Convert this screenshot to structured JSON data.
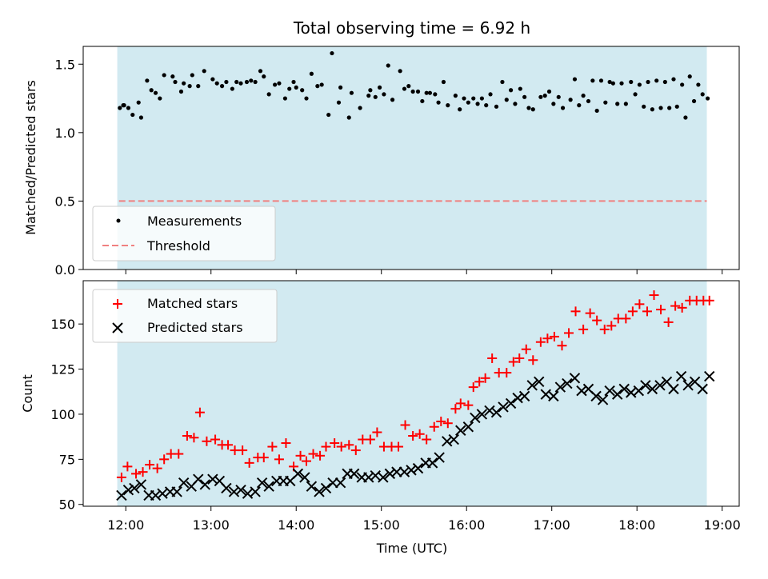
{
  "chart_data": {
    "title": "Total observing time = 6.92 h",
    "x_axis": {
      "label": "Time (UTC)",
      "ticks": [
        "12:00",
        "13:00",
        "14:00",
        "15:00",
        "16:00",
        "17:00",
        "18:00",
        "19:00"
      ],
      "range_hours": [
        11.5,
        19.2
      ]
    },
    "shaded_region": {
      "start_hour": 11.9,
      "end_hour": 18.82,
      "color": "#add8e6"
    },
    "panels": [
      {
        "type": "scatter",
        "ylabel": "Matched/Predicted stars",
        "ylim": [
          0,
          1.63
        ],
        "yticks": [
          "0.0",
          "0.5",
          "1.0",
          "1.5"
        ],
        "legend": {
          "placement": "lower-left",
          "entries": [
            "Measurements",
            "Threshold"
          ]
        },
        "series": [
          {
            "name": "Measurements",
            "marker": "dot",
            "color": "#000000",
            "x": [
              11.93,
              11.98,
              12.08,
              12.18,
              12.3,
              12.4,
              12.58,
              12.68,
              12.78,
              12.92,
              13.02,
              13.13,
              13.25,
              13.35,
              13.47,
              13.58,
              13.68,
              13.8,
              13.92,
              14.0,
              14.12,
              14.25,
              14.38,
              14.5,
              14.62,
              14.75,
              14.87,
              14.98,
              15.08,
              15.22,
              15.32,
              15.43,
              15.53,
              15.63,
              15.73,
              15.87,
              15.97,
              16.08,
              16.18,
              16.28,
              16.42,
              16.52,
              16.63,
              16.73,
              16.87,
              16.97,
              17.08,
              17.22,
              17.32,
              17.43,
              17.53,
              17.63,
              17.77,
              17.87,
              17.98,
              18.08,
              18.18,
              18.28,
              18.38,
              18.47,
              18.57,
              18.67,
              18.77,
              18.83,
              11.97,
              12.03,
              12.15,
              12.25,
              12.35,
              12.45,
              12.55,
              12.65,
              12.75,
              12.85,
              13.07,
              13.18,
              13.3,
              13.42,
              13.52,
              13.62,
              13.75,
              13.87,
              13.97,
              14.07,
              14.18,
              14.3,
              14.42,
              14.52,
              14.65,
              14.85,
              14.93,
              15.03,
              15.13,
              15.27,
              15.37,
              15.48,
              15.57,
              15.67,
              15.78,
              15.92,
              16.02,
              16.13,
              16.23,
              16.35,
              16.47,
              16.57,
              16.68,
              16.78,
              16.92,
              17.02,
              17.13,
              17.27,
              17.37,
              17.48,
              17.58,
              17.68,
              17.72,
              17.82,
              17.93,
              18.03,
              18.13,
              18.23,
              18.33,
              18.43,
              18.53,
              18.62,
              18.72
            ],
            "y": [
              1.18,
              1.2,
              1.13,
              1.11,
              1.31,
              1.25,
              1.37,
              1.36,
              1.42,
              1.45,
              1.39,
              1.34,
              1.32,
              1.36,
              1.38,
              1.45,
              1.28,
              1.36,
              1.32,
              1.33,
              1.25,
              1.34,
              1.13,
              1.22,
              1.11,
              1.18,
              1.31,
              1.33,
              1.49,
              1.45,
              1.34,
              1.3,
              1.29,
              1.28,
              1.37,
              1.27,
              1.25,
              1.25,
              1.25,
              1.28,
              1.37,
              1.31,
              1.32,
              1.18,
              1.26,
              1.3,
              1.26,
              1.24,
              1.2,
              1.23,
              1.16,
              1.22,
              1.21,
              1.21,
              1.28,
              1.19,
              1.17,
              1.18,
              1.18,
              1.19,
              1.11,
              1.23,
              1.28,
              1.25,
              1.2,
              1.18,
              1.22,
              1.38,
              1.29,
              1.42,
              1.41,
              1.3,
              1.34,
              1.34,
              1.36,
              1.37,
              1.37,
              1.37,
              1.37,
              1.41,
              1.35,
              1.25,
              1.37,
              1.31,
              1.43,
              1.35,
              1.58,
              1.33,
              1.29,
              1.27,
              1.26,
              1.28,
              1.24,
              1.32,
              1.3,
              1.23,
              1.29,
              1.22,
              1.2,
              1.17,
              1.22,
              1.21,
              1.2,
              1.19,
              1.24,
              1.21,
              1.26,
              1.17,
              1.27,
              1.21,
              1.18,
              1.39,
              1.27,
              1.38,
              1.38,
              1.37,
              1.36,
              1.36,
              1.37,
              1.35,
              1.37,
              1.38,
              1.37,
              1.39,
              1.35,
              1.41,
              1.35
            ]
          },
          {
            "name": "Threshold",
            "type": "line",
            "style": "dashed",
            "color": "#f08080",
            "x": [
              11.92,
              18.82
            ],
            "y": [
              0.5,
              0.5
            ]
          }
        ]
      },
      {
        "type": "scatter",
        "ylabel": "Count",
        "ylim": [
          49,
          174
        ],
        "yticks": [
          "50",
          "75",
          "100",
          "125",
          "150"
        ],
        "legend": {
          "placement": "upper-left",
          "entries": [
            "Matched stars",
            "Predicted stars"
          ]
        },
        "series": [
          {
            "name": "Matched stars",
            "marker": "plus",
            "color": "#ff0000",
            "x": [
              11.95,
              12.02,
              12.12,
              12.2,
              12.28,
              12.37,
              12.45,
              12.53,
              12.62,
              12.72,
              12.8,
              12.87,
              12.95,
              13.05,
              13.13,
              13.2,
              13.28,
              13.37,
              13.45,
              13.55,
              13.62,
              13.72,
              13.8,
              13.88,
              13.97,
              14.05,
              14.12,
              14.2,
              14.28,
              14.35,
              14.45,
              14.53,
              14.62,
              14.7,
              14.78,
              14.87,
              14.95,
              15.03,
              15.12,
              15.2,
              15.28,
              15.37,
              15.45,
              15.53,
              15.62,
              15.7,
              15.78,
              15.87,
              15.93,
              16.02,
              16.08,
              16.15,
              16.22,
              16.3,
              16.38,
              16.47,
              16.55,
              16.62,
              16.7,
              16.78,
              16.87,
              16.95,
              17.03,
              17.12,
              17.2,
              17.28,
              17.37,
              17.45,
              17.53,
              17.62,
              17.7,
              17.78,
              17.87,
              17.95,
              18.03,
              18.12,
              18.2,
              18.28,
              18.37,
              18.45,
              18.53,
              18.62,
              18.7,
              18.78,
              18.85
            ],
            "y": [
              65,
              71,
              67,
              68,
              72,
              70,
              75,
              78,
              78,
              88,
              87,
              101,
              85,
              86,
              83,
              83,
              80,
              80,
              73,
              76,
              76,
              82,
              75,
              84,
              71,
              77,
              74,
              78,
              77,
              82,
              84,
              82,
              83,
              80,
              86,
              86,
              90,
              82,
              82,
              82,
              94,
              88,
              89,
              86,
              93,
              96,
              95,
              103,
              106,
              105,
              115,
              118,
              120,
              131,
              123,
              123,
              129,
              131,
              136,
              130,
              140,
              142,
              143,
              138,
              145,
              157,
              147,
              156,
              152,
              147,
              149,
              153,
              153,
              157,
              161,
              157,
              166,
              158,
              151,
              160,
              159,
              163,
              163,
              163,
              163
            ],
            "x_plot": []
          },
          {
            "name": "Predicted stars",
            "marker": "x",
            "color": "#000000",
            "x": [
              11.95,
              12.03,
              12.1,
              12.18,
              12.27,
              12.35,
              12.43,
              12.52,
              12.6,
              12.68,
              12.77,
              12.85,
              12.93,
              13.02,
              13.1,
              13.18,
              13.27,
              13.35,
              13.43,
              13.52,
              13.6,
              13.68,
              13.77,
              13.85,
              13.93,
              14.02,
              14.1,
              14.18,
              14.27,
              14.35,
              14.43,
              14.52,
              14.6,
              14.68,
              14.77,
              14.85,
              14.93,
              15.02,
              15.1,
              15.18,
              15.27,
              15.35,
              15.43,
              15.52,
              15.6,
              15.68,
              15.77,
              15.85,
              15.93,
              16.02,
              16.1,
              16.18,
              16.27,
              16.35,
              16.43,
              16.52,
              16.6,
              16.68,
              16.77,
              16.85,
              16.93,
              17.02,
              17.1,
              17.18,
              17.27,
              17.35,
              17.43,
              17.52,
              17.6,
              17.68,
              17.77,
              17.85,
              17.93,
              18.02,
              18.1,
              18.18,
              18.27,
              18.35,
              18.43,
              18.52,
              18.6,
              18.68,
              18.77,
              18.85
            ],
            "y": [
              55,
              58,
              59,
              61,
              55,
              55,
              56,
              57,
              57,
              62,
              60,
              64,
              61,
              64,
              63,
              59,
              57,
              58,
              56,
              57,
              62,
              60,
              63,
              63,
              63,
              67,
              65,
              60,
              57,
              59,
              62,
              62,
              67,
              67,
              65,
              65,
              66,
              65,
              67,
              68,
              68,
              69,
              70,
              73,
              73,
              76,
              85,
              86,
              91,
              93,
              98,
              100,
              102,
              101,
              104,
              106,
              109,
              110,
              116,
              118,
              111,
              110,
              115,
              117,
              120,
              113,
              114,
              110,
              108,
              113,
              111,
              114,
              112,
              113,
              116,
              114,
              116,
              118,
              114,
              121,
              116,
              118,
              114,
              121
            ]
          }
        ]
      }
    ]
  }
}
